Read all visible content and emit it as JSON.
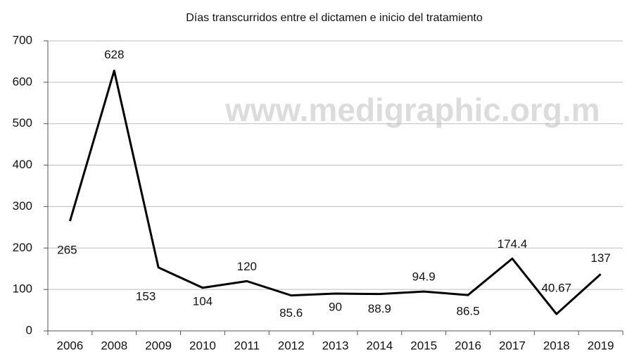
{
  "chart_data": {
    "type": "line",
    "title": "Días transcurridos entre el dictamen e inicio del tratamiento",
    "annotation": "www.medigraphic.org.m",
    "categories": [
      "2006",
      "2008",
      "2009",
      "2010",
      "2011",
      "2012",
      "2013",
      "2014",
      "2015",
      "2016",
      "2017",
      "2018",
      "2019"
    ],
    "values": [
      265,
      628,
      153,
      104,
      120,
      85.6,
      90,
      88.9,
      94.9,
      86.5,
      174.4,
      40.67,
      137
    ],
    "color": "#000000",
    "ylim": [
      0,
      700
    ],
    "yticks": [
      0,
      100,
      200,
      300,
      400,
      500,
      600,
      700
    ],
    "grid": true
  }
}
